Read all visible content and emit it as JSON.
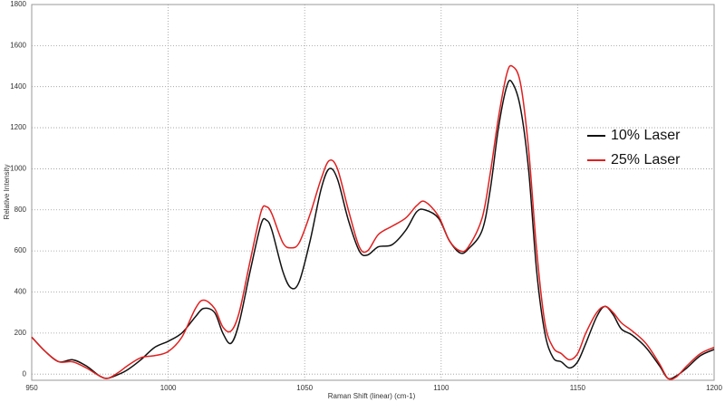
{
  "chart_data": {
    "type": "line",
    "xlabel": "Raman Shift (linear) (cm-1)",
    "ylabel": "Relative Intensity",
    "x": [
      950,
      955,
      960,
      965,
      970,
      975,
      978,
      982,
      985,
      990,
      995,
      1000,
      1005,
      1010,
      1013,
      1017,
      1020,
      1023,
      1026,
      1030,
      1034,
      1036,
      1038,
      1042,
      1045,
      1048,
      1052,
      1056,
      1059,
      1062,
      1066,
      1070,
      1073,
      1077,
      1082,
      1087,
      1091,
      1094,
      1099,
      1103,
      1107,
      1110,
      1115,
      1118,
      1121,
      1124,
      1126,
      1129,
      1132,
      1135,
      1138,
      1141,
      1144,
      1147,
      1150,
      1153,
      1157,
      1160,
      1163,
      1166,
      1170,
      1175,
      1180,
      1183,
      1186,
      1190,
      1195,
      1200
    ],
    "series": [
      {
        "name": "10% Laser",
        "color": "#111111",
        "values": [
          180,
          110,
          60,
          70,
          40,
          -10,
          -20,
          0,
          20,
          70,
          130,
          160,
          200,
          280,
          320,
          300,
          200,
          150,
          250,
          500,
          730,
          750,
          700,
          500,
          420,
          450,
          650,
          900,
          1000,
          950,
          750,
          600,
          580,
          620,
          630,
          700,
          790,
          800,
          760,
          650,
          590,
          610,
          700,
          900,
          1200,
          1400,
          1420,
          1300,
          1000,
          500,
          200,
          80,
          60,
          30,
          60,
          150,
          280,
          330,
          290,
          220,
          190,
          130,
          40,
          -20,
          -10,
          30,
          90,
          120
        ]
      },
      {
        "name": "25% Laser",
        "color": "#e02020",
        "values": [
          180,
          110,
          60,
          60,
          30,
          -10,
          -20,
          10,
          40,
          80,
          90,
          110,
          180,
          320,
          360,
          320,
          230,
          210,
          300,
          550,
          790,
          815,
          780,
          640,
          615,
          640,
          780,
          950,
          1040,
          1000,
          800,
          620,
          600,
          680,
          720,
          760,
          820,
          840,
          770,
          650,
          600,
          620,
          760,
          980,
          1250,
          1460,
          1500,
          1420,
          1100,
          600,
          250,
          130,
          100,
          70,
          100,
          200,
          300,
          330,
          300,
          250,
          210,
          150,
          50,
          -20,
          -15,
          40,
          100,
          130
        ]
      }
    ],
    "xlim": [
      950,
      1200
    ],
    "xticks": [
      950,
      1000,
      1050,
      1100,
      1150,
      1200
    ],
    "ylim": [
      -30,
      1800
    ],
    "yticks": [
      0,
      200,
      400,
      600,
      800,
      1000,
      1200,
      1400,
      1600,
      1800
    ],
    "grid": true,
    "legend": "right"
  }
}
